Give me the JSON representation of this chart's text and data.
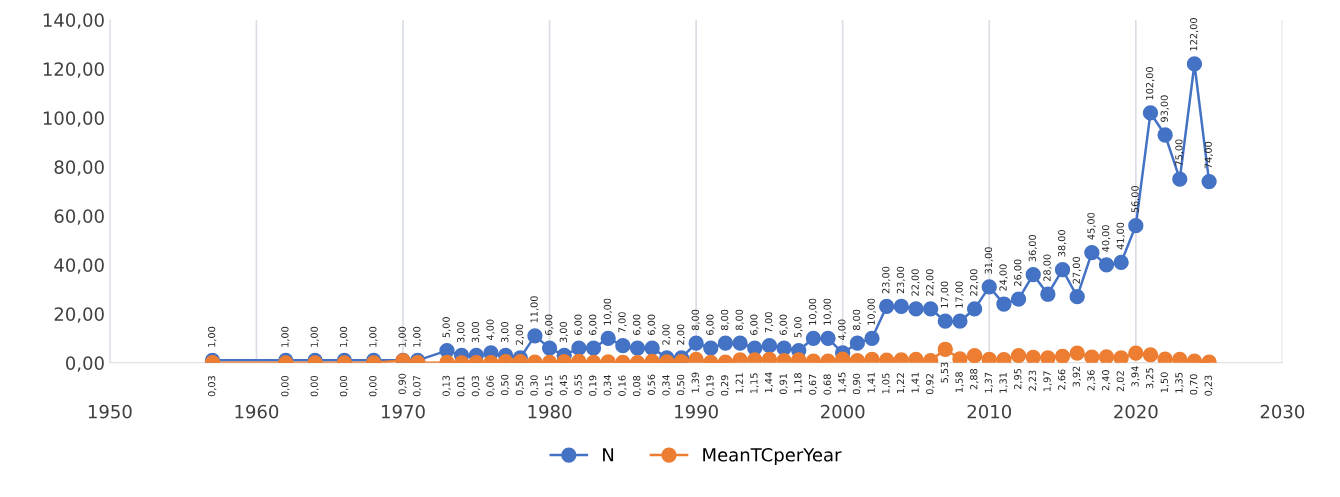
{
  "chart_data": {
    "type": "line",
    "x": [
      1957,
      1962,
      1964,
      1966,
      1968,
      1970,
      1971,
      1973,
      1974,
      1975,
      1976,
      1977,
      1978,
      1979,
      1980,
      1981,
      1982,
      1983,
      1984,
      1985,
      1986,
      1987,
      1988,
      1989,
      1990,
      1991,
      1992,
      1993,
      1994,
      1995,
      1996,
      1997,
      1998,
      1999,
      2000,
      2001,
      2002,
      2003,
      2004,
      2005,
      2006,
      2007,
      2008,
      2009,
      2010,
      2011,
      2012,
      2013,
      2014,
      2015,
      2016,
      2017,
      2018,
      2019,
      2020,
      2021,
      2022,
      2023,
      2024,
      2025
    ],
    "series": [
      {
        "name": "N",
        "color": "#4472c4",
        "values": [
          1,
          1,
          1,
          1,
          1,
          1,
          1,
          5,
          3,
          3,
          4,
          3,
          2,
          11,
          6,
          3,
          6,
          6,
          10,
          7,
          6,
          6,
          2,
          2,
          8,
          6,
          8,
          8,
          6,
          7,
          6,
          5,
          10,
          10,
          4,
          8,
          10,
          23,
          23,
          22,
          22,
          17,
          17,
          22,
          31,
          24,
          26,
          36,
          28,
          38,
          27,
          45,
          40,
          41,
          56,
          102,
          93,
          75,
          122,
          74
        ],
        "value_labels": [
          "1,00",
          "1,00",
          "1,00",
          "1,00",
          "1,00",
          "1,00",
          "1,00",
          "5,00",
          "3,00",
          "3,00",
          "4,00",
          "3,00",
          "2,00",
          "11,00",
          "6,00",
          "3,00",
          "6,00",
          "6,00",
          "10,00",
          "7,00",
          "6,00",
          "6,00",
          "2,00",
          "2,00",
          "8,00",
          "6,00",
          "8,00",
          "8,00",
          "6,00",
          "7,00",
          "6,00",
          "5,00",
          "10,00",
          "10,00",
          "4,00",
          "8,00",
          "10,00",
          "23,00",
          "23,00",
          "22,00",
          "22,00",
          "17,00",
          "17,00",
          "22,00",
          "31,00",
          "24,00",
          "26,00",
          "36,00",
          "28,00",
          "38,00",
          "27,00",
          "45,00",
          "40,00",
          "41,00",
          "56,00",
          "102,00",
          "93,00",
          "75,00",
          "122,00",
          "74,00"
        ]
      },
      {
        "name": "MeanTCperYear",
        "color": "#ed7d31",
        "values": [
          0.03,
          0,
          0,
          0,
          0,
          0.9,
          0.07,
          0.13,
          0.01,
          0.03,
          0.06,
          0.5,
          0.5,
          0.3,
          0.15,
          0.45,
          0.55,
          0.19,
          0.34,
          0.16,
          0.08,
          0.56,
          0.34,
          0.5,
          1.39,
          0.19,
          0.29,
          1.21,
          1.15,
          1.44,
          0.91,
          1.18,
          0.67,
          0.68,
          1.45,
          0.9,
          1.41,
          1.05,
          1.22,
          1.41,
          0.92,
          5.53,
          1.58,
          2.88,
          1.37,
          1.31,
          2.95,
          2.23,
          1.97,
          2.66,
          3.92,
          2.36,
          2.4,
          2.02,
          3.94,
          3.25,
          1.5,
          1.35,
          0.7,
          0.23
        ],
        "value_labels": [
          "0,03",
          "0,00",
          "0,00",
          "0,00",
          "0,00",
          "0,90",
          "0,07",
          "0,13",
          "0,01",
          "0,03",
          "0,06",
          "0,50",
          "0,50",
          "0,30",
          "0,15",
          "0,45",
          "0,55",
          "0,19",
          "0,34",
          "0,16",
          "0,08",
          "0,56",
          "0,34",
          "0,50",
          "1,39",
          "0,19",
          "0,29",
          "1,21",
          "1,15",
          "1,44",
          "0,91",
          "1,18",
          "0,67",
          "0,68",
          "1,45",
          "0,90",
          "1,41",
          "1,05",
          "1,22",
          "1,41",
          "0,92",
          "5,53",
          "1,58",
          "2,88",
          "1,37",
          "1,31",
          "2,95",
          "2,23",
          "1,97",
          "2,66",
          "3,92",
          "2,36",
          "2,40",
          "2,02",
          "3,94",
          "3,25",
          "1,50",
          "1,35",
          "0,70",
          "0,23"
        ]
      }
    ],
    "xlim": [
      1950,
      2030
    ],
    "xticks": [
      1950,
      1960,
      1970,
      1980,
      1990,
      2000,
      2010,
      2020,
      2030
    ],
    "ylim": [
      0,
      140
    ],
    "yticks": [
      {
        "value": 0,
        "label": "0,00"
      },
      {
        "value": 20,
        "label": "20,00"
      },
      {
        "value": 40,
        "label": "40,00"
      },
      {
        "value": 60,
        "label": "60,00"
      },
      {
        "value": 80,
        "label": "80,00"
      },
      {
        "value": 100,
        "label": "100,00"
      },
      {
        "value": 120,
        "label": "120,00"
      },
      {
        "value": 140,
        "label": "140,00"
      }
    ],
    "grid": "x",
    "legend": "bottom",
    "marker": "circle",
    "line_style": "solid"
  }
}
